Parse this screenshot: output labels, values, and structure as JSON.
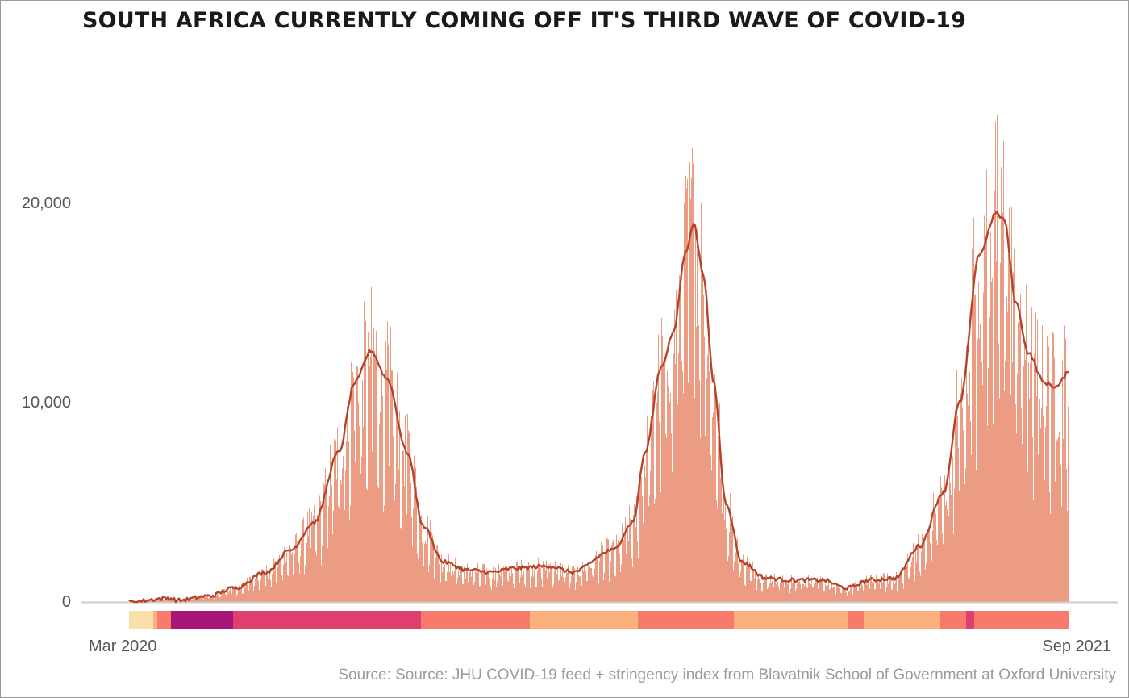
{
  "chart_data": {
    "type": "bar",
    "title": "SOUTH AFRICA CURRENTLY COMING OFF IT'S THIRD WAVE OF COVID-19",
    "source": "Source: Source: JHU COVID-19 feed + stringency index from Blavatnik School of Government at Oxford University",
    "x_start_label": "Mar 2020",
    "x_end_label": "Sep 2021",
    "y_ticks": [
      {
        "value": 0,
        "label": "0"
      },
      {
        "value": 10000,
        "label": "10,000"
      },
      {
        "value": 20000,
        "label": "20,000"
      }
    ],
    "ylim": [
      0,
      28000
    ],
    "grid": false,
    "series": [
      {
        "kind": "bars",
        "name": "",
        "color": "#e8896a"
      },
      {
        "kind": "line",
        "name": "",
        "color": "#b4432a"
      }
    ],
    "curve_keypoints": [
      [
        0,
        0
      ],
      [
        50,
        200
      ],
      [
        60,
        80
      ],
      [
        100,
        300
      ],
      [
        130,
        700
      ],
      [
        170,
        1500
      ],
      [
        200,
        2600
      ],
      [
        230,
        4000
      ],
      [
        260,
        7500
      ],
      [
        280,
        11000
      ],
      [
        300,
        12600
      ],
      [
        320,
        11200
      ],
      [
        345,
        7500
      ],
      [
        365,
        3800
      ],
      [
        390,
        2000
      ],
      [
        420,
        1600
      ],
      [
        450,
        1500
      ],
      [
        480,
        1700
      ],
      [
        520,
        1800
      ],
      [
        550,
        1500
      ],
      [
        600,
        2600
      ],
      [
        625,
        4000
      ],
      [
        640,
        7500
      ],
      [
        660,
        11800
      ],
      [
        675,
        13500
      ],
      [
        690,
        17500
      ],
      [
        700,
        19000
      ],
      [
        712,
        16500
      ],
      [
        725,
        11000
      ],
      [
        740,
        5000
      ],
      [
        760,
        2000
      ],
      [
        790,
        1200
      ],
      [
        820,
        1100
      ],
      [
        860,
        1100
      ],
      [
        890,
        700
      ],
      [
        920,
        1100
      ],
      [
        950,
        1200
      ],
      [
        980,
        2800
      ],
      [
        1010,
        5500
      ],
      [
        1030,
        10000
      ],
      [
        1055,
        17500
      ],
      [
        1075,
        19500
      ],
      [
        1085,
        19200
      ],
      [
        1100,
        15000
      ],
      [
        1115,
        12500
      ],
      [
        1135,
        11000
      ],
      [
        1150,
        10800
      ],
      [
        1165,
        11500
      ],
      [
        1180,
        12100
      ],
      [
        1192,
        11800
      ],
      [
        1205,
        10000
      ]
    ],
    "peaks": [
      {
        "x": 302,
        "value": 14000
      },
      {
        "x": 699,
        "value": 22000
      },
      {
        "x": 1072,
        "value": 26500
      }
    ],
    "stringency_colors": {
      "level1": "#f9dfa8",
      "level2": "#fcb07b",
      "level3": "#f87a6c",
      "level4": "#de3f6d",
      "level5": "#a8167a"
    },
    "stringency_segments": [
      {
        "level": "level1",
        "start": 0,
        "end": 30
      },
      {
        "level": "level2",
        "start": 30,
        "end": 35
      },
      {
        "level": "level3",
        "start": 35,
        "end": 52
      },
      {
        "level": "level5",
        "start": 52,
        "end": 129
      },
      {
        "level": "level4",
        "start": 129,
        "end": 362
      },
      {
        "level": "level3",
        "start": 362,
        "end": 497
      },
      {
        "level": "level2",
        "start": 497,
        "end": 631
      },
      {
        "level": "level3",
        "start": 631,
        "end": 750
      },
      {
        "level": "level2",
        "start": 750,
        "end": 892
      },
      {
        "level": "level3",
        "start": 892,
        "end": 912
      },
      {
        "level": "level2",
        "start": 912,
        "end": 1006
      },
      {
        "level": "level3",
        "start": 1006,
        "end": 1038
      },
      {
        "level": "level4",
        "start": 1038,
        "end": 1048
      },
      {
        "level": "level3",
        "start": 1048,
        "end": 1166
      }
    ],
    "x_count": 1166
  }
}
